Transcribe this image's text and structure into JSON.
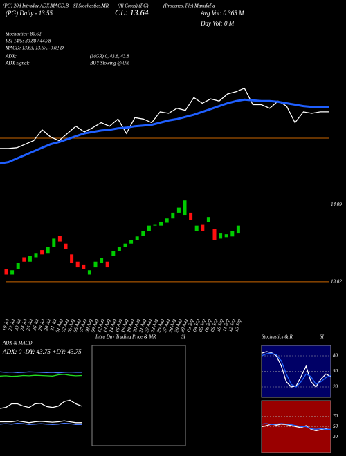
{
  "header": {
    "line1": "(PG) 20d Intraday ADX,MACD,B",
    "line2": "SI,Stochastics,MR",
    "line3": "(Al Cross) (PG)",
    "line4": "(Procenes, Plc) ManufaPa",
    "daily": "(PG) Daily - 13.55",
    "close": "CL: 13.64",
    "avg_vol": "Avg Vol: 0.365 M",
    "day_vol": "Day Vol: 0   M",
    "stochastics": "Stochastics: 89.62",
    "rsi": "RSI 14/5: 30.88 / 44.78",
    "macd": "MACD: 13.63, 13.67, -0.02 D",
    "adx_label": "ADX:",
    "adx_values": "(MGR) 0, 43.8, 43.8",
    "adx_signal_label": "ADX  signal:",
    "adx_signal": "BUY Slowing @ 0%"
  },
  "chart_data": [
    {
      "type": "line",
      "ylim": [
        12.9,
        14.2
      ],
      "series": [
        {
          "color": "#ffffff",
          "values": [
            13.19,
            13.19,
            13.2,
            13.25,
            13.3,
            13.45,
            13.35,
            13.3,
            13.4,
            13.5,
            13.42,
            13.48,
            13.55,
            13.5,
            13.6,
            13.4,
            13.62,
            13.6,
            13.55,
            13.7,
            13.68,
            13.75,
            13.72,
            13.9,
            13.82,
            13.88,
            13.85,
            13.95,
            13.98,
            14.03,
            13.8,
            13.8,
            13.75,
            13.85,
            13.78,
            13.55,
            13.7,
            13.68,
            13.7,
            13.7
          ]
        },
        {
          "color": "#1f5fff",
          "values": [
            12.98,
            13.0,
            13.05,
            13.1,
            13.15,
            13.2,
            13.25,
            13.28,
            13.32,
            13.36,
            13.4,
            13.42,
            13.44,
            13.45,
            13.47,
            13.48,
            13.5,
            13.51,
            13.52,
            13.55,
            13.58,
            13.6,
            13.63,
            13.66,
            13.7,
            13.74,
            13.78,
            13.82,
            13.85,
            13.87,
            13.86,
            13.85,
            13.85,
            13.84,
            13.82,
            13.8,
            13.78,
            13.77,
            13.77,
            13.77
          ]
        }
      ]
    },
    {
      "type": "candlestick",
      "ylim": [
        13.0,
        14.2
      ],
      "yticks": [
        13.02,
        14.09
      ],
      "up_color": "#00cc00",
      "down_color": "#ff1010",
      "grid_color": "#cc6600",
      "categories": [
        "19 Jul",
        "22 Jul",
        "23 Jul",
        "24 Jul",
        "25 Jul",
        "26 Jul",
        "29 Jul",
        "30 Jul",
        "31 Jul",
        "01 Aug",
        "02 Aug",
        "05 Aug",
        "06 Aug",
        "07 Aug",
        "08 Aug",
        "09 Aug",
        "12 Aug",
        "13 Aug",
        "14 Aug",
        "15 Aug",
        "16 Aug",
        "19 Aug",
        "20 Aug",
        "21 Aug",
        "22 Aug",
        "23 Aug",
        "26 Aug",
        "27 Aug",
        "28 Aug",
        "29 Aug",
        "30 Aug",
        "03 Sep",
        "04 Sep",
        "05 Sep",
        "06 Sep",
        "09 Sep",
        "10 Sep",
        "11 Sep",
        "12 Sep",
        "13 Sep"
      ],
      "open": [
        13.2,
        13.12,
        13.2,
        13.36,
        13.3,
        13.36,
        13.46,
        13.42,
        13.5,
        13.66,
        13.55,
        13.4,
        13.3,
        13.26,
        13.12,
        13.22,
        13.28,
        13.3,
        13.38,
        13.45,
        13.5,
        13.55,
        13.6,
        13.66,
        13.72,
        13.8,
        13.8,
        13.84,
        13.9,
        13.98,
        13.95,
        13.98,
        13.72,
        13.82,
        13.85,
        13.75,
        13.62,
        13.64,
        13.65,
        13.7
      ],
      "close": [
        13.12,
        13.18,
        13.28,
        13.3,
        13.38,
        13.42,
        13.4,
        13.5,
        13.62,
        13.58,
        13.48,
        13.28,
        13.22,
        13.2,
        13.18,
        13.3,
        13.35,
        13.22,
        13.45,
        13.5,
        13.55,
        13.6,
        13.65,
        13.72,
        13.8,
        13.82,
        13.85,
        13.9,
        13.98,
        14.05,
        14.15,
        13.88,
        13.8,
        13.72,
        13.92,
        13.6,
        13.7,
        13.68,
        13.72,
        13.8
      ]
    },
    {
      "type": "line",
      "title": "ADX  & MACD",
      "subtitle": "ADX: 0  -DY: 43.75  +DY: 43.75",
      "ylim": [
        0,
        100
      ],
      "series": [
        {
          "color": "#4a7aff",
          "values": [
            62,
            60,
            61,
            59,
            60,
            62,
            61,
            60,
            59,
            60,
            58,
            60,
            61,
            60,
            60
          ]
        },
        {
          "color": "#22dd22",
          "values": [
            45,
            46,
            44,
            45,
            47,
            46,
            48,
            47,
            46,
            45,
            50,
            52,
            48,
            46,
            47
          ]
        }
      ]
    },
    {
      "type": "line",
      "ylim": [
        0,
        100
      ],
      "series": [
        {
          "color": "#ffffff",
          "values": [
            60,
            62,
            70,
            70,
            65,
            62,
            70,
            71,
            64,
            62,
            65,
            75,
            78,
            70,
            65
          ]
        },
        {
          "color": "#ffffff",
          "values": [
            30,
            30,
            30,
            32,
            30,
            28,
            30,
            31,
            30,
            29,
            30,
            32,
            30,
            28,
            28
          ]
        },
        {
          "color": "#4a7aff",
          "values": [
            25,
            26,
            25,
            27,
            26,
            24,
            25,
            26,
            25,
            24,
            25,
            27,
            26,
            24,
            24
          ]
        }
      ]
    },
    {
      "type": "line",
      "title": "Intra Day Trading Price  & MR",
      "title2": "SI",
      "series": []
    },
    {
      "type": "line",
      "title": "Stochastics & R",
      "title2": "SI",
      "ylim": [
        0,
        100
      ],
      "yticks": [
        20,
        50,
        80
      ],
      "background": "#000066",
      "series": [
        {
          "color": "#ffffff",
          "values": [
            85,
            88,
            86,
            80,
            60,
            30,
            20,
            22,
            40,
            60,
            30,
            20,
            35,
            45,
            40
          ]
        },
        {
          "color": "#2266ff",
          "values": [
            80,
            84,
            85,
            82,
            70,
            45,
            25,
            20,
            30,
            45,
            40,
            25,
            30,
            38,
            42
          ]
        }
      ]
    },
    {
      "type": "line",
      "ylim": [
        0,
        100
      ],
      "yticks": [
        30,
        50,
        70
      ],
      "background": "#990000",
      "series": [
        {
          "color": "#ffffff",
          "values": [
            50,
            52,
            55,
            53,
            55,
            54,
            52,
            50,
            48,
            52,
            45,
            42,
            44,
            46,
            44
          ]
        },
        {
          "color": "#2266ff",
          "values": [
            55,
            56,
            54,
            55,
            56,
            55,
            54,
            52,
            50,
            50,
            46,
            45,
            46,
            45,
            45
          ]
        }
      ]
    }
  ]
}
